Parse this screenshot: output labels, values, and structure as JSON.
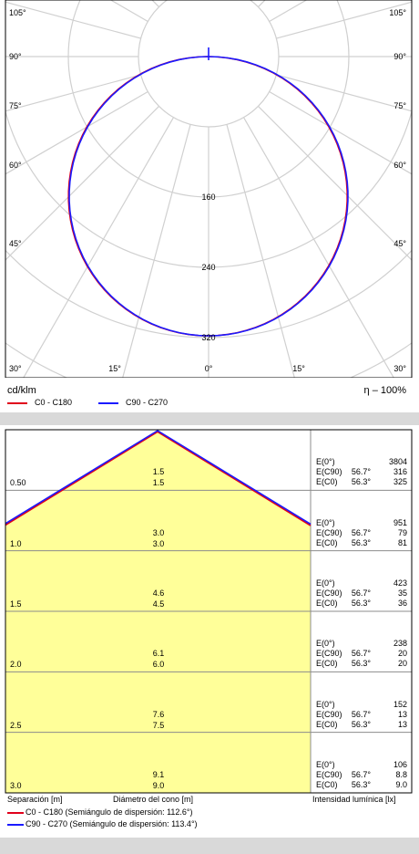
{
  "chart_data": [
    {
      "type": "polar",
      "angle_labels_left": [
        "105°",
        "90°",
        "75°",
        "60°",
        "45°",
        "30°"
      ],
      "angle_labels_right": [
        "105°",
        "90°",
        "75°",
        "60°",
        "45°",
        "30°"
      ],
      "angle_labels_bottom": [
        "15°",
        "0°",
        "15°"
      ],
      "radial_ticks": [
        160,
        240,
        320
      ],
      "unit": "cd/klm",
      "efficiency": "η  –  100%",
      "series": [
        {
          "name": "C0 - C180",
          "color": "#e0001b",
          "peak_cd_klm": 318
        },
        {
          "name": "C90 - C270",
          "color": "#1a1aff",
          "peak_cd_klm": 318
        }
      ]
    },
    {
      "type": "table",
      "rows": [
        {
          "distance": "0.50",
          "diam_c90": "1.5",
          "diam_c0": "1.5",
          "e_labels": [
            "E(0°)",
            "E(C90)",
            "E(C0)"
          ],
          "angles": [
            "",
            "56.7°",
            "56.3°"
          ],
          "e_values": [
            "3804",
            "316",
            "325"
          ]
        },
        {
          "distance": "1.0",
          "diam_c90": "3.0",
          "diam_c0": "3.0",
          "e_labels": [
            "E(0°)",
            "E(C90)",
            "E(C0)"
          ],
          "angles": [
            "",
            "56.7°",
            "56.3°"
          ],
          "e_values": [
            "951",
            "79",
            "81"
          ]
        },
        {
          "distance": "1.5",
          "diam_c90": "4.6",
          "diam_c0": "4.5",
          "e_labels": [
            "E(0°)",
            "E(C90)",
            "E(C0)"
          ],
          "angles": [
            "",
            "56.7°",
            "56.3°"
          ],
          "e_values": [
            "423",
            "35",
            "36"
          ]
        },
        {
          "distance": "2.0",
          "diam_c90": "6.1",
          "diam_c0": "6.0",
          "e_labels": [
            "E(0°)",
            "E(C90)",
            "E(C0)"
          ],
          "angles": [
            "",
            "56.7°",
            "56.3°"
          ],
          "e_values": [
            "238",
            "20",
            "20"
          ]
        },
        {
          "distance": "2.5",
          "diam_c90": "7.6",
          "diam_c0": "7.5",
          "e_labels": [
            "E(0°)",
            "E(C90)",
            "E(C0)"
          ],
          "angles": [
            "",
            "56.7°",
            "56.3°"
          ],
          "e_values": [
            "152",
            "13",
            "13"
          ]
        },
        {
          "distance": "3.0",
          "diam_c90": "9.1",
          "diam_c0": "9.0",
          "e_labels": [
            "E(0°)",
            "E(C90)",
            "E(C0)"
          ],
          "angles": [
            "",
            "56.7°",
            "56.3°"
          ],
          "e_values": [
            "106",
            "8.8",
            "9.0"
          ]
        }
      ],
      "footer_left": "Separación [m]",
      "footer_mid": "Diámetro del cono [m]",
      "footer_right": "Intensidad lumínica [lx]",
      "cone_half_angle_deg": 56.5,
      "series": [
        {
          "name": "C0 - C180 (Semiángulo de dispersión: 112.6°)",
          "color": "#e0001b"
        },
        {
          "name": "C90 - C270 (Semiángulo de dispersión: 113.4°)",
          "color": "#1a1aff"
        }
      ]
    }
  ]
}
